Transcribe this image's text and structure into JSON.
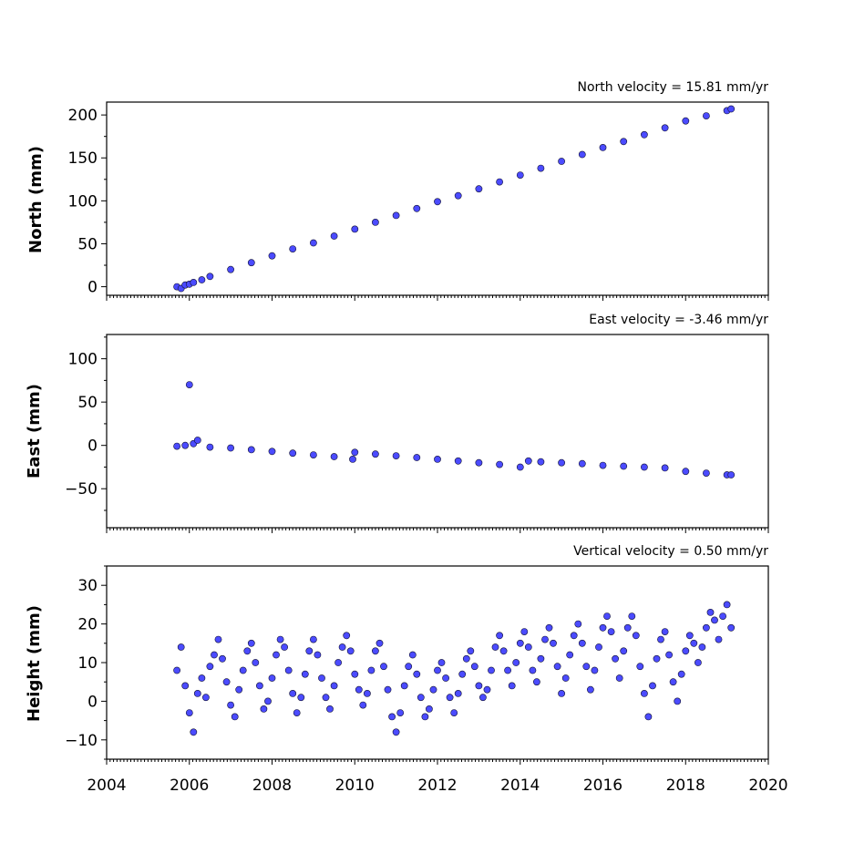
{
  "chart_data": [
    {
      "type": "scatter",
      "title": "North velocity = 15.81 mm/yr",
      "ylabel": "North (mm)",
      "xlim": [
        2004,
        2020
      ],
      "ylim": [
        -10,
        215
      ],
      "yticks": [
        0,
        50,
        100,
        150,
        200
      ],
      "xticks": [],
      "marker_color": "#4b4bff",
      "edge_color": "#111133",
      "series": [
        {
          "x": [
            2005.7,
            2005.8,
            2005.9,
            2006.0,
            2006.1,
            2006.3,
            2006.5,
            2007.0,
            2007.5,
            2008.0,
            2008.5,
            2009.0,
            2009.5,
            2010.0,
            2010.5,
            2011.0,
            2011.5,
            2012.0,
            2012.5,
            2013.0,
            2013.5,
            2014.0,
            2014.5,
            2015.0,
            2015.5,
            2016.0,
            2016.5,
            2017.0,
            2017.5,
            2018.0,
            2018.5,
            2019.0,
            2019.1
          ],
          "y": [
            0,
            -2,
            2,
            3,
            5,
            8,
            12,
            20,
            28,
            36,
            44,
            51,
            59,
            67,
            75,
            83,
            91,
            99,
            106,
            114,
            122,
            130,
            138,
            146,
            154,
            162,
            169,
            177,
            185,
            193,
            199,
            205,
            207
          ]
        }
      ]
    },
    {
      "type": "scatter",
      "title": "East velocity = -3.46 mm/yr",
      "ylabel": "East (mm)",
      "xlim": [
        2004,
        2020
      ],
      "ylim": [
        -95,
        128
      ],
      "yticks": [
        -50,
        0,
        50,
        100
      ],
      "xticks": [],
      "marker_color": "#4b4bff",
      "edge_color": "#111133",
      "series": [
        {
          "x": [
            2005.7,
            2005.9,
            2006.0,
            2006.1,
            2006.2,
            2006.5,
            2007.0,
            2007.5,
            2008.0,
            2008.5,
            2009.0,
            2009.5,
            2009.95,
            2010.0,
            2010.5,
            2011.0,
            2011.5,
            2012.0,
            2012.5,
            2013.0,
            2013.5,
            2014.0,
            2014.2,
            2014.5,
            2015.0,
            2015.5,
            2016.0,
            2016.5,
            2017.0,
            2017.5,
            2018.0,
            2018.5,
            2019.0,
            2019.1
          ],
          "y": [
            -1,
            0,
            70,
            2,
            6,
            -2,
            -3,
            -5,
            -7,
            -9,
            -11,
            -13,
            -16,
            -8,
            -10,
            -12,
            -14,
            -16,
            -18,
            -20,
            -22,
            -25,
            -18,
            -19,
            -20,
            -21,
            -23,
            -24,
            -25,
            -26,
            -30,
            -32,
            -34,
            -34
          ]
        }
      ]
    },
    {
      "type": "scatter",
      "title": "Vertical velocity = 0.50 mm/yr",
      "ylabel": "Height (mm)",
      "xlim": [
        2004,
        2020
      ],
      "ylim": [
        -15,
        35
      ],
      "yticks": [
        -10,
        0,
        10,
        20,
        30
      ],
      "xticks": [
        2004,
        2006,
        2008,
        2010,
        2012,
        2014,
        2016,
        2018,
        2020
      ],
      "xtick_labels": [
        "2004",
        "2006",
        "2008",
        "2010",
        "2012",
        "2014",
        "2016",
        "2018",
        "2020"
      ],
      "marker_color": "#4b4bff",
      "edge_color": "#111133",
      "series": [
        {
          "x": [
            2005.7,
            2005.8,
            2005.9,
            2006.0,
            2006.1,
            2006.2,
            2006.3,
            2006.4,
            2006.5,
            2006.6,
            2006.7,
            2006.8,
            2006.9,
            2007.0,
            2007.1,
            2007.2,
            2007.3,
            2007.4,
            2007.5,
            2007.6,
            2007.7,
            2007.8,
            2007.9,
            2008.0,
            2008.1,
            2008.2,
            2008.3,
            2008.4,
            2008.5,
            2008.6,
            2008.7,
            2008.8,
            2008.9,
            2009.0,
            2009.1,
            2009.2,
            2009.3,
            2009.4,
            2009.5,
            2009.6,
            2009.7,
            2009.8,
            2009.9,
            2010.0,
            2010.1,
            2010.2,
            2010.3,
            2010.4,
            2010.5,
            2010.6,
            2010.7,
            2010.8,
            2010.9,
            2011.0,
            2011.1,
            2011.2,
            2011.3,
            2011.4,
            2011.5,
            2011.6,
            2011.7,
            2011.8,
            2011.9,
            2012.0,
            2012.1,
            2012.2,
            2012.3,
            2012.4,
            2012.5,
            2012.6,
            2012.7,
            2012.8,
            2012.9,
            2013.0,
            2013.1,
            2013.2,
            2013.3,
            2013.4,
            2013.5,
            2013.6,
            2013.7,
            2013.8,
            2013.9,
            2014.0,
            2014.1,
            2014.2,
            2014.3,
            2014.4,
            2014.5,
            2014.6,
            2014.7,
            2014.8,
            2014.9,
            2015.0,
            2015.1,
            2015.2,
            2015.3,
            2015.4,
            2015.5,
            2015.6,
            2015.7,
            2015.8,
            2015.9,
            2016.0,
            2016.1,
            2016.2,
            2016.3,
            2016.4,
            2016.5,
            2016.6,
            2016.7,
            2016.8,
            2016.9,
            2017.0,
            2017.1,
            2017.2,
            2017.3,
            2017.4,
            2017.5,
            2017.6,
            2017.7,
            2017.8,
            2017.9,
            2018.0,
            2018.1,
            2018.2,
            2018.3,
            2018.4,
            2018.5,
            2018.6,
            2018.7,
            2018.8,
            2018.9,
            2019.0,
            2019.1
          ],
          "y": [
            8,
            14,
            4,
            -3,
            -8,
            2,
            6,
            1,
            9,
            12,
            16,
            11,
            5,
            -1,
            -4,
            3,
            8,
            13,
            15,
            10,
            4,
            -2,
            0,
            6,
            12,
            16,
            14,
            8,
            2,
            -3,
            1,
            7,
            13,
            16,
            12,
            6,
            1,
            -2,
            4,
            10,
            14,
            17,
            13,
            7,
            3,
            -1,
            2,
            8,
            13,
            15,
            9,
            3,
            -4,
            -8,
            -3,
            4,
            9,
            12,
            7,
            1,
            -4,
            -2,
            3,
            8,
            10,
            6,
            1,
            -3,
            2,
            7,
            11,
            13,
            9,
            4,
            1,
            3,
            8,
            14,
            17,
            13,
            8,
            4,
            10,
            15,
            18,
            14,
            8,
            5,
            11,
            16,
            19,
            15,
            9,
            2,
            6,
            12,
            17,
            20,
            15,
            9,
            3,
            8,
            14,
            19,
            22,
            18,
            11,
            6,
            13,
            19,
            22,
            17,
            9,
            2,
            -4,
            4,
            11,
            16,
            18,
            12,
            5,
            0,
            7,
            13,
            17,
            15,
            10,
            14,
            19,
            23,
            21,
            16,
            22,
            25,
            19
          ]
        }
      ]
    }
  ]
}
